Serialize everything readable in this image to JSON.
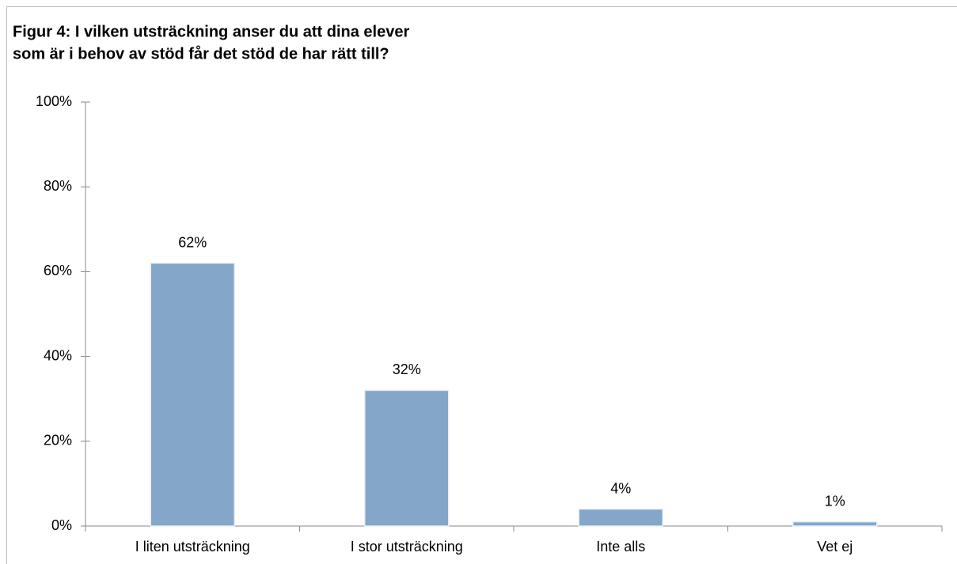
{
  "chart_data": {
    "type": "bar",
    "title": [
      "Figur 4: I vilken utsträckning anser du att dina elever",
      "som är i behov av stöd får det stöd de har rätt till?"
    ],
    "categories": [
      "I liten utsträckning",
      "I stor utsträckning",
      "Inte alls",
      "Vet ej"
    ],
    "values": [
      62,
      32,
      4,
      1
    ],
    "value_labels": [
      "62%",
      "32%",
      "4%",
      "1%"
    ],
    "color": "#84a6c8",
    "ylim": [
      0,
      100
    ],
    "yticks": [
      {
        "value": 0,
        "label": "0%"
      },
      {
        "value": 20,
        "label": "20%"
      },
      {
        "value": 40,
        "label": "40%"
      },
      {
        "value": 60,
        "label": "60%"
      },
      {
        "value": 80,
        "label": "80%"
      },
      {
        "value": 100,
        "label": "100%"
      }
    ],
    "grid": false
  }
}
